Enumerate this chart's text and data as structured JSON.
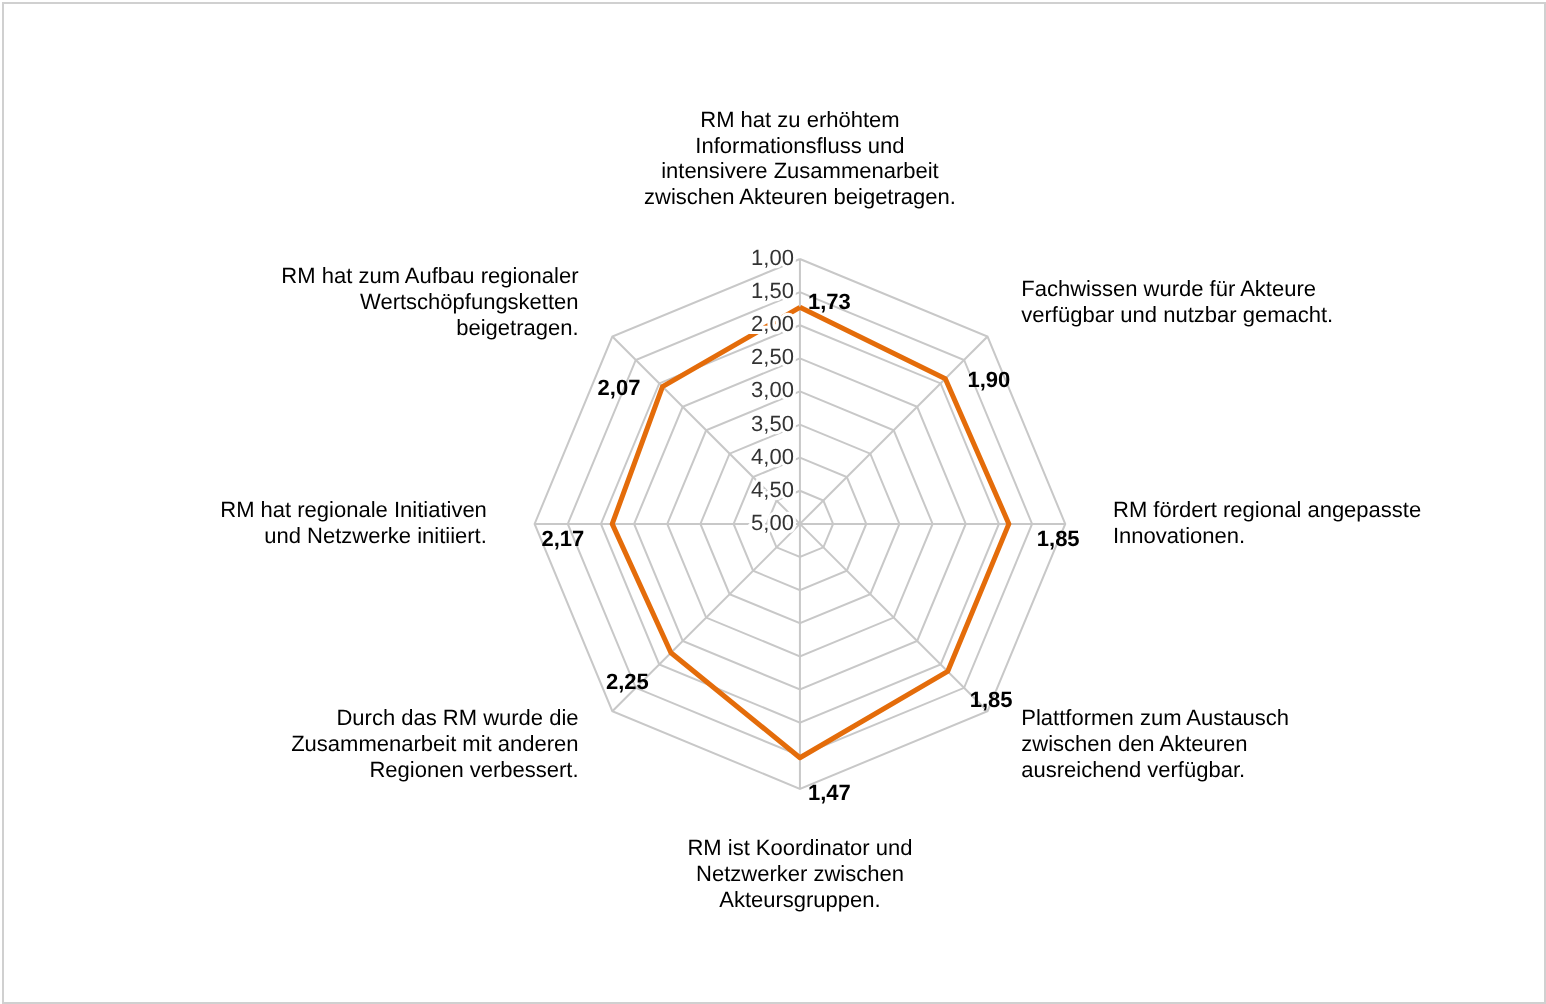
{
  "chart_data": {
    "type": "radar",
    "categories": [
      "RM hat zu erhöhtem Informationsfluss und intensivere Zusammenarbeit zwischen Akteuren beigetragen.",
      "Fachwissen wurde für Akteure verfügbar und nutzbar gemacht.",
      "RM fördert regional angepasste Innovationen.",
      "Plattformen zum Austausch zwischen den Akteuren ausreichend verfügbar.",
      "RM ist Koordinator und Netzwerker zwischen Akteursgruppen.",
      "Durch das RM wurde die Zusammenarbeit mit anderen Regionen verbessert.",
      "RM hat regionale Initiativen und Netzwerke initiiert.",
      "RM hat zum Aufbau regionaler Wertschöpfungsketten beigetragen."
    ],
    "series": [
      {
        "color": "#e46c0a",
        "values": [
          1.73,
          1.9,
          1.85,
          1.85,
          1.47,
          2.25,
          2.17,
          2.07
        ],
        "value_labels": [
          "1,73",
          "1,90",
          "1,85",
          "1,85",
          "1,47",
          "2,25",
          "2,17",
          "2,07"
        ]
      }
    ],
    "ylim": [
      5,
      1
    ],
    "yticks": [
      {
        "value": 1,
        "label": "1,00"
      },
      {
        "value": 1.5,
        "label": "1,50"
      },
      {
        "value": 2,
        "label": "2,00"
      },
      {
        "value": 2.5,
        "label": "2,50"
      },
      {
        "value": 3,
        "label": "3,00"
      },
      {
        "value": 3.5,
        "label": "3,50"
      },
      {
        "value": 4,
        "label": "4,00"
      },
      {
        "value": 4.5,
        "label": "4,50"
      },
      {
        "value": 5,
        "label": "5,00"
      }
    ],
    "grid": true,
    "marker": "none",
    "line_style": "solid"
  }
}
